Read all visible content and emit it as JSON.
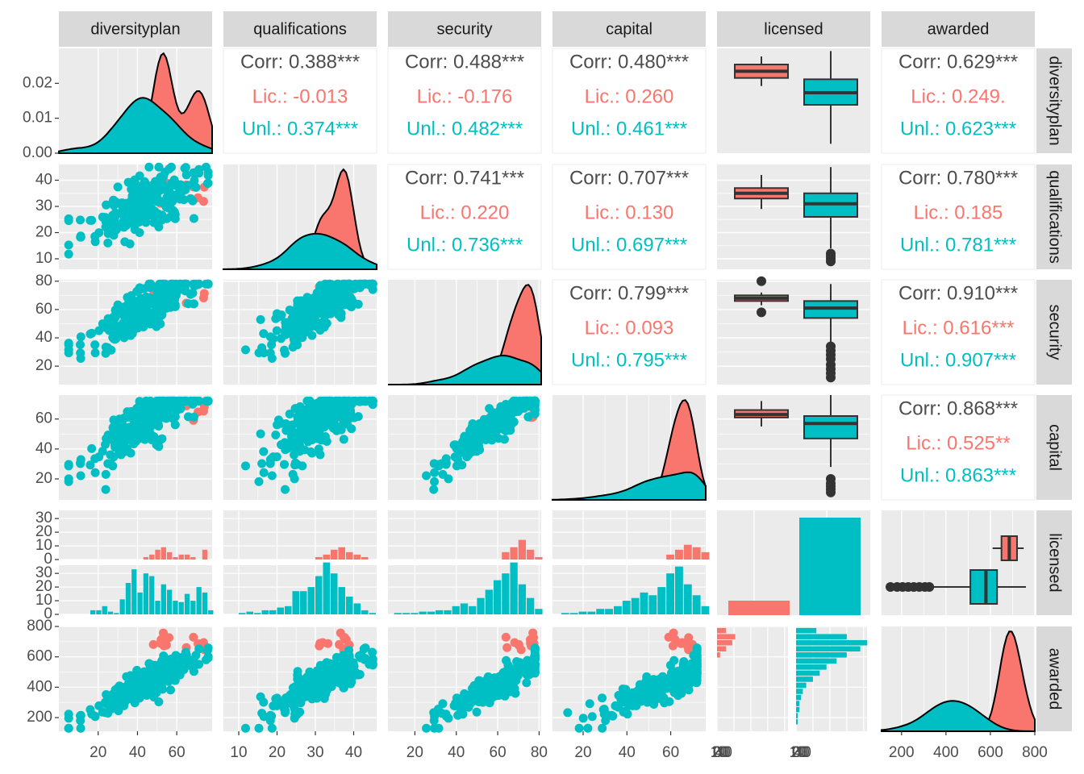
{
  "chart_data": {
    "type": "scatter-matrix",
    "variables": [
      "diversityplan",
      "qualifications",
      "security",
      "capital",
      "licensed",
      "awarded"
    ],
    "groups": [
      {
        "name": "Lic.",
        "color": "#F8766D"
      },
      {
        "name": "Unl.",
        "color": "#00BFC4"
      }
    ],
    "correlations": [
      {
        "row": 0,
        "col": 1,
        "overall": "Corr: 0.388***",
        "lic": "Lic.: -0.013",
        "unl": "Unl.: 0.374***"
      },
      {
        "row": 0,
        "col": 2,
        "overall": "Corr: 0.488***",
        "lic": "Lic.: -0.176",
        "unl": "Unl.: 0.482***"
      },
      {
        "row": 0,
        "col": 3,
        "overall": "Corr: 0.480***",
        "lic": "Lic.: 0.260",
        "unl": "Unl.: 0.461***"
      },
      {
        "row": 0,
        "col": 5,
        "overall": "Corr: 0.629***",
        "lic": "Lic.: 0.249.",
        "unl": "Unl.: 0.623***"
      },
      {
        "row": 1,
        "col": 2,
        "overall": "Corr: 0.741***",
        "lic": "Lic.: 0.220",
        "unl": "Unl.: 0.736***"
      },
      {
        "row": 1,
        "col": 3,
        "overall": "Corr: 0.707***",
        "lic": "Lic.: 0.130",
        "unl": "Unl.: 0.697***"
      },
      {
        "row": 1,
        "col": 5,
        "overall": "Corr: 0.780***",
        "lic": "Lic.: 0.185",
        "unl": "Unl.: 0.781***"
      },
      {
        "row": 2,
        "col": 3,
        "overall": "Corr: 0.799***",
        "lic": "Lic.: 0.093",
        "unl": "Unl.: 0.795***"
      },
      {
        "row": 2,
        "col": 5,
        "overall": "Corr: 0.910***",
        "lic": "Lic.: 0.616***",
        "unl": "Unl.: 0.907***"
      },
      {
        "row": 3,
        "col": 5,
        "overall": "Corr: 0.868***",
        "lic": "Lic.: 0.525**",
        "unl": "Unl.: 0.863***"
      }
    ],
    "ranges": {
      "diversityplan": [
        0,
        78
      ],
      "qualifications": [
        6,
        46
      ],
      "security": [
        7,
        81
      ],
      "capital": [
        6,
        76
      ],
      "awarded": [
        110,
        800
      ]
    },
    "x_ticks": {
      "diversityplan": [
        20,
        40,
        60
      ],
      "qualifications": [
        10,
        20,
        30,
        40
      ],
      "security": [
        20,
        40,
        60,
        80
      ],
      "capital": [
        20,
        40,
        60
      ],
      "awarded": [
        200,
        400,
        600,
        800
      ],
      "licensed_hist": [
        "0",
        "10",
        "20",
        "30",
        "40",
        "0",
        "10",
        "20",
        "30",
        "40"
      ]
    },
    "y_ticks": {
      "diversityplan_density": [
        "0.02",
        "0.01",
        "0.00"
      ],
      "qualifications": [
        40,
        30,
        20,
        10
      ],
      "security": [
        80,
        60,
        40,
        20
      ],
      "capital": [
        60,
        40,
        20
      ],
      "licensed_lic": [
        30,
        20,
        10,
        0
      ],
      "licensed_unl": [
        30,
        20,
        10,
        0
      ],
      "awarded": [
        800,
        600,
        400,
        200
      ]
    },
    "licensed_counts": {
      "Lic.": 12,
      "Unl.": 243
    },
    "boxplots": {
      "diversityplan": {
        "Lic.": {
          "q1": 56,
          "median": 61,
          "q3": 66,
          "lo": 50,
          "hi": 72
        },
        "Unl.": {
          "q1": 36,
          "median": 45,
          "q3": 55,
          "lo": 7,
          "hi": 76
        }
      },
      "qualifications": {
        "Lic.": {
          "q1": 33,
          "median": 35,
          "q3": 37,
          "lo": 29,
          "hi": 42
        },
        "Unl.": {
          "q1": 26,
          "median": 31,
          "q3": 35,
          "lo": 14,
          "hi": 45,
          "outliers": [
            9,
            10,
            11,
            12
          ]
        },
        "Note": ""
      },
      "security": {
        "Lic.": {
          "q1": 66,
          "median": 68,
          "q3": 70,
          "lo": 63,
          "hi": 72,
          "outliers": [
            80,
            58
          ]
        },
        "Unl.": {
          "q1": 54,
          "median": 61,
          "q3": 66,
          "lo": 37,
          "hi": 78,
          "outliers": [
            12,
            15,
            18,
            21,
            25,
            28,
            31,
            34
          ]
        }
      },
      "capital": {
        "Lic.": {
          "q1": 61,
          "median": 63,
          "q3": 66,
          "lo": 55,
          "hi": 72
        },
        "Unl.": {
          "q1": 47,
          "median": 57,
          "q3": 62,
          "lo": 28,
          "hi": 76,
          "outliers": [
            11,
            13,
            15,
            17,
            20
          ]
        }
      },
      "awarded": {
        "Lic.": {
          "q1": 650,
          "median": 685,
          "q3": 720,
          "lo": 610,
          "hi": 750
        },
        "Unl.": {
          "q1": 510,
          "median": 580,
          "q3": 630,
          "lo": 340,
          "hi": 760,
          "outliers": [
            150,
            180,
            205,
            230,
            255,
            280,
            305,
            325
          ]
        }
      }
    },
    "histograms": {
      "licensed_x_diversityplan": {
        "bins": [
          16,
          19,
          22,
          25,
          28,
          31,
          34,
          37,
          40,
          43,
          46,
          49,
          52,
          55,
          58,
          61,
          64,
          67,
          70,
          73,
          76
        ],
        "Lic.": [
          0,
          0,
          0,
          0,
          0,
          0,
          0,
          0,
          0,
          1,
          2,
          4,
          5,
          3,
          1,
          2,
          2,
          1,
          0,
          4,
          0
        ],
        "Unl.": [
          3,
          3,
          6,
          2,
          1,
          11,
          23,
          33,
          16,
          30,
          28,
          10,
          22,
          18,
          10,
          9,
          15,
          10,
          20,
          16,
          3
        ]
      },
      "licensed_x_qualifications": {
        "bins": [
          10,
          12,
          14,
          16,
          18,
          20,
          22,
          24,
          26,
          28,
          30,
          32,
          34,
          36,
          38,
          40,
          42,
          44
        ],
        "Lic.": [
          0,
          0,
          0,
          0,
          0,
          0,
          0,
          0,
          0,
          0,
          1,
          2,
          4,
          5,
          3,
          2,
          1,
          0
        ],
        "Unl.": [
          1,
          2,
          1,
          3,
          3,
          5,
          6,
          17,
          17,
          20,
          28,
          38,
          30,
          20,
          13,
          8,
          3,
          1
        ]
      },
      "licensed_x_security": {
        "bins": [
          10,
          14,
          18,
          22,
          26,
          30,
          34,
          38,
          42,
          46,
          50,
          54,
          58,
          62,
          66,
          70,
          74,
          78
        ],
        "Lic.": [
          0,
          0,
          0,
          0,
          0,
          0,
          0,
          0,
          0,
          0,
          0,
          0,
          0,
          3,
          5,
          8,
          4,
          1
        ],
        "Unl.": [
          1,
          1,
          1,
          2,
          2,
          3,
          3,
          6,
          8,
          6,
          12,
          18,
          25,
          30,
          38,
          22,
          12,
          4
        ]
      },
      "licensed_x_capital": {
        "bins": [
          10,
          14,
          18,
          22,
          26,
          30,
          34,
          38,
          42,
          46,
          50,
          54,
          58,
          62,
          66,
          70,
          74
        ],
        "Lic.": [
          0,
          0,
          0,
          0,
          0,
          0,
          0,
          0,
          0,
          0,
          0,
          0,
          2,
          4,
          6,
          5,
          3
        ],
        "Unl.": [
          1,
          1,
          2,
          2,
          4,
          4,
          6,
          10,
          12,
          16,
          14,
          20,
          30,
          35,
          22,
          14,
          6
        ]
      },
      "awarded_x_licensed": {
        "bins": [
          150,
          190,
          230,
          270,
          310,
          350,
          390,
          430,
          470,
          510,
          550,
          590,
          630,
          670,
          710,
          750
        ],
        "Lic.": [
          0,
          0,
          0,
          0,
          0,
          0,
          0,
          0,
          0,
          0,
          0,
          1,
          3,
          5,
          6,
          3
        ],
        "Unl.": [
          1,
          1,
          2,
          2,
          3,
          4,
          6,
          10,
          14,
          18,
          24,
          30,
          38,
          42,
          30,
          12
        ]
      }
    },
    "xlabel": "",
    "ylabel": "",
    "title": ""
  }
}
